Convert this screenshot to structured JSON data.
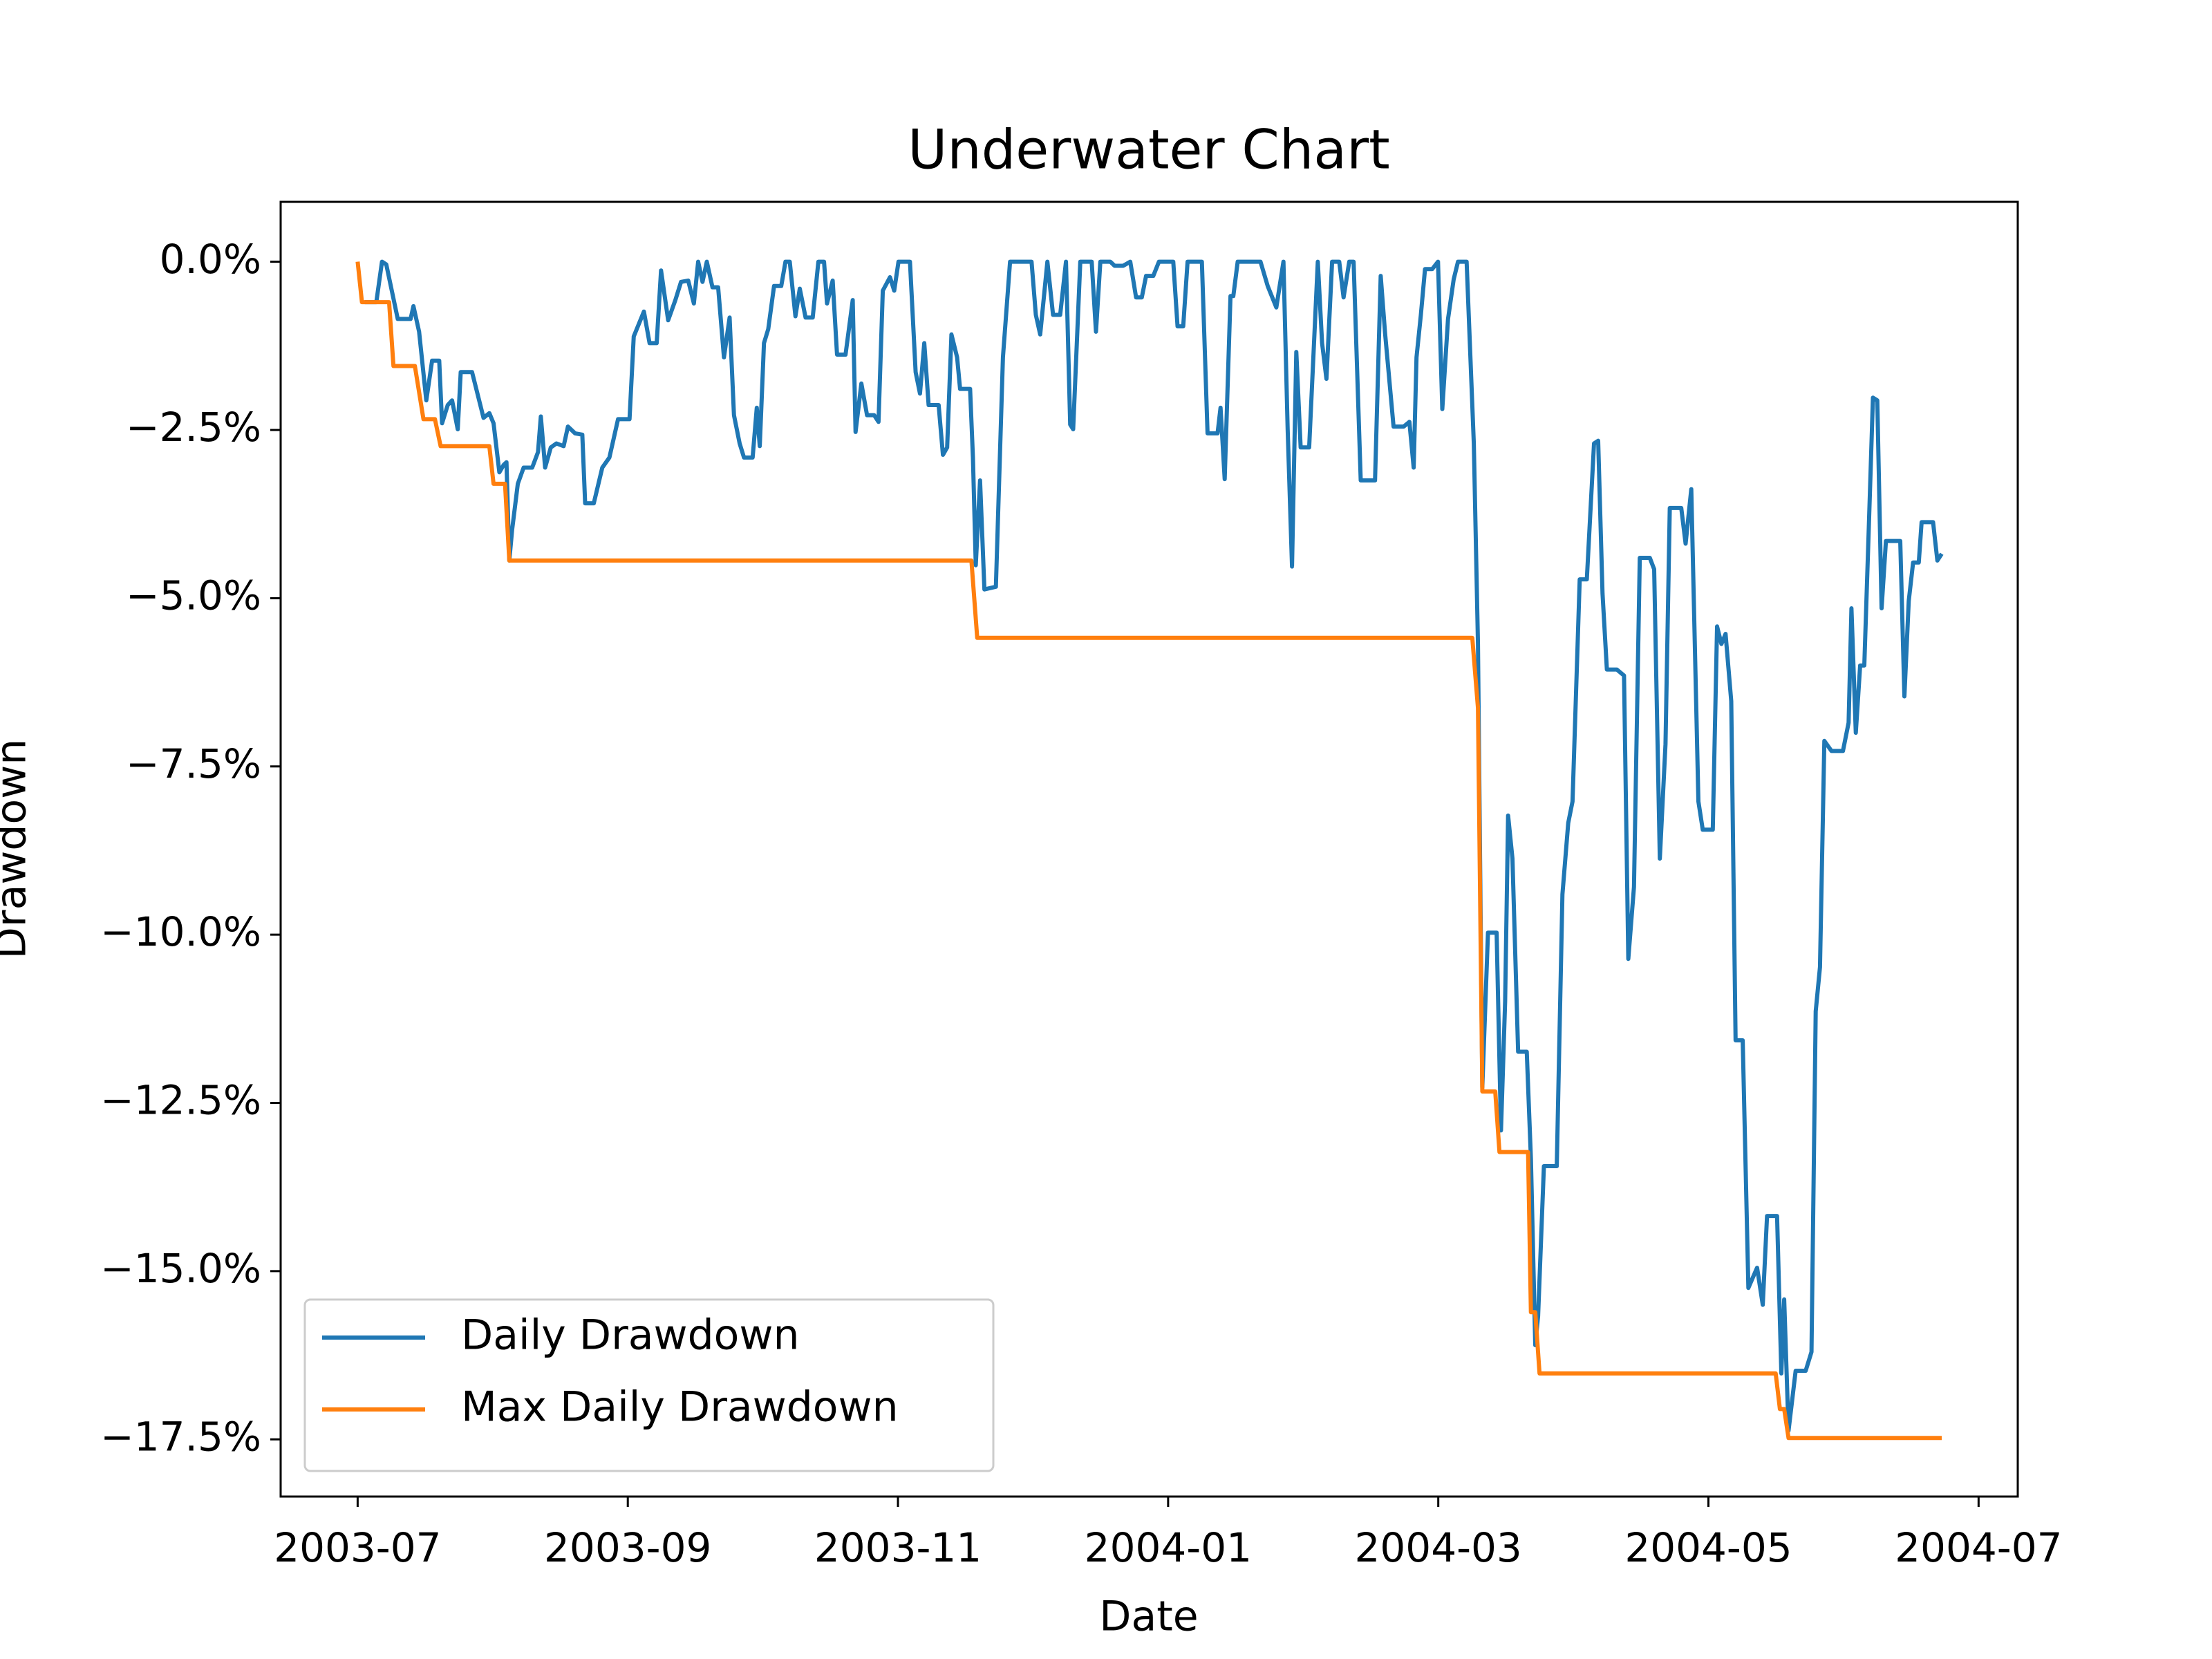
{
  "chart_data": {
    "type": "line",
    "title": "Underwater Chart",
    "xlabel": "Date",
    "ylabel": "Drawdown",
    "xlim": [
      -0.57,
      12.29
    ],
    "xticks": [
      {
        "value": 0,
        "label": "2003-07"
      },
      {
        "value": 2,
        "label": "2003-09"
      },
      {
        "value": 4,
        "label": "2003-11"
      },
      {
        "value": 6,
        "label": "2004-01"
      },
      {
        "value": 8,
        "label": "2004-03"
      },
      {
        "value": 10,
        "label": "2004-05"
      },
      {
        "value": 12,
        "label": "2004-07"
      }
    ],
    "ylim": [
      -18.35,
      0.89
    ],
    "yticks": [
      {
        "value": 0,
        "label": "0.0%"
      },
      {
        "value": -2.5,
        "label": "−2.5%"
      },
      {
        "value": -5,
        "label": "−5.0%"
      },
      {
        "value": -7.5,
        "label": "−7.5%"
      },
      {
        "value": -10,
        "label": "−10.0%"
      },
      {
        "value": -12.5,
        "label": "−12.5%"
      },
      {
        "value": -15,
        "label": "−15.0%"
      },
      {
        "value": -17.5,
        "label": "−17.5%"
      }
    ],
    "legend": "lower left",
    "series": [
      {
        "name": "Daily Drawdown",
        "color": "#1f77b4",
        "x": [
          0.053,
          0.138,
          0.18,
          0.212,
          0.297,
          0.392,
          0.413,
          0.455,
          0.508,
          0.551,
          0.604,
          0.625,
          0.667,
          0.699,
          0.741,
          0.763,
          0.847,
          0.932,
          0.975,
          1.006,
          1.049,
          1.081,
          1.102,
          1.123,
          1.144,
          1.186,
          1.229,
          1.292,
          1.335,
          1.356,
          1.388,
          1.43,
          1.472,
          1.525,
          1.557,
          1.61,
          1.663,
          1.684,
          1.748,
          1.811,
          1.864,
          1.928,
          2.013,
          2.044,
          2.119,
          2.161,
          2.214,
          2.246,
          2.299,
          2.352,
          2.394,
          2.447,
          2.489,
          2.521,
          2.553,
          2.585,
          2.627,
          2.669,
          2.712,
          2.754,
          2.786,
          2.828,
          2.86,
          2.924,
          2.955,
          2.977,
          3.008,
          3.04,
          3.083,
          3.136,
          3.167,
          3.199,
          3.241,
          3.273,
          3.316,
          3.369,
          3.411,
          3.453,
          3.475,
          3.517,
          3.549,
          3.612,
          3.665,
          3.686,
          3.729,
          3.771,
          3.824,
          3.856,
          3.888,
          3.941,
          3.972,
          4.004,
          4.089,
          4.131,
          4.163,
          4.195,
          4.227,
          4.301,
          4.333,
          4.364,
          4.396,
          4.438,
          4.46,
          4.534,
          4.555,
          4.576,
          4.608,
          4.64,
          4.725,
          4.777,
          4.83,
          4.989,
          5.021,
          5.053,
          5.106,
          5.148,
          5.201,
          5.244,
          5.275,
          5.297,
          5.35,
          5.434,
          5.466,
          5.498,
          5.572,
          5.604,
          5.667,
          5.72,
          5.763,
          5.805,
          5.837,
          5.89,
          5.932,
          6.038,
          6.07,
          6.112,
          6.144,
          6.25,
          6.292,
          6.366,
          6.388,
          6.419,
          6.462,
          6.483,
          6.515,
          6.684,
          6.737,
          6.801,
          6.854,
          6.885,
          6.917,
          6.949,
          6.981,
          7.044,
          7.108,
          7.14,
          7.172,
          7.214,
          7.267,
          7.299,
          7.341,
          7.373,
          7.426,
          7.532,
          7.574,
          7.606,
          7.669,
          7.744,
          7.786,
          7.818,
          7.839,
          7.871,
          7.902,
          7.955,
          7.998,
          8.03,
          8.072,
          8.114,
          8.146,
          8.21,
          8.263,
          8.294,
          8.326,
          8.368,
          8.432,
          8.464,
          8.495,
          8.517,
          8.549,
          8.591,
          8.655,
          8.686,
          8.718,
          8.739,
          8.782,
          8.877,
          8.919,
          8.962,
          8.994,
          9.047,
          9.1,
          9.153,
          9.184,
          9.216,
          9.248,
          9.322,
          9.375,
          9.407,
          9.449,
          9.492,
          9.566,
          9.598,
          9.64,
          9.682,
          9.714,
          9.799,
          9.831,
          9.873,
          9.926,
          9.958,
          10.032,
          10.064,
          10.096,
          10.127,
          10.169,
          10.201,
          10.254,
          10.296,
          10.36,
          10.402,
          10.434,
          10.508,
          10.54,
          10.561,
          10.593,
          10.646,
          10.72,
          10.763,
          10.794,
          10.826,
          10.858,
          10.911,
          10.996,
          11.038,
          11.059,
          11.091,
          11.123,
          11.154,
          11.186,
          11.218,
          11.25,
          11.282,
          11.314,
          11.42,
          11.451,
          11.483,
          11.515,
          11.557,
          11.578,
          11.663,
          11.695,
          11.727
        ],
        "values": [
          -0.6,
          -0.6,
          0,
          -0.04,
          -0.85,
          -0.85,
          -0.66,
          -1.04,
          -2.06,
          -1.47,
          -1.47,
          -2.4,
          -2.13,
          -2.06,
          -2.49,
          -1.64,
          -1.64,
          -2.32,
          -2.25,
          -2.4,
          -3.13,
          -3.02,
          -2.98,
          -4.44,
          -3.98,
          -3.3,
          -3.06,
          -3.06,
          -2.83,
          -2.3,
          -3.06,
          -2.76,
          -2.7,
          -2.74,
          -2.45,
          -2.55,
          -2.57,
          -3.59,
          -3.59,
          -3.06,
          -2.91,
          -2.34,
          -2.34,
          -1.11,
          -0.74,
          -1.21,
          -1.21,
          -0.13,
          -0.87,
          -0.57,
          -0.3,
          -0.28,
          -0.62,
          0,
          -0.3,
          0,
          -0.38,
          -0.38,
          -1.42,
          -0.83,
          -2.28,
          -2.7,
          -2.91,
          -2.91,
          -2.17,
          -2.74,
          -1.21,
          -1,
          -0.36,
          -0.36,
          0,
          0,
          -0.81,
          -0.4,
          -0.83,
          -0.83,
          0,
          0,
          -0.62,
          -0.28,
          -1.38,
          -1.38,
          -0.57,
          -2.53,
          -1.81,
          -2.28,
          -2.28,
          -2.38,
          -0.43,
          -0.23,
          -0.43,
          0,
          0,
          -1.64,
          -1.96,
          -1.21,
          -2.13,
          -2.13,
          -2.87,
          -2.76,
          -1.08,
          -1.42,
          -1.89,
          -1.89,
          -2.91,
          -4.51,
          -3.25,
          -4.87,
          -4.83,
          -1.42,
          0,
          0,
          -0.79,
          -1.08,
          0,
          -0.79,
          -0.79,
          0,
          -2.42,
          -2.49,
          0,
          0,
          -1.04,
          0,
          0,
          -0.06,
          -0.06,
          0,
          -0.53,
          -0.53,
          -0.21,
          -0.21,
          0,
          0,
          -0.96,
          -0.96,
          0,
          0,
          -2.55,
          -2.55,
          -2.17,
          -3.23,
          -0.51,
          -0.51,
          0,
          0,
          -0.36,
          -0.68,
          0,
          -2.49,
          -4.53,
          -1.34,
          -2.76,
          -2.76,
          0,
          -1.21,
          -1.74,
          0,
          0,
          -0.53,
          0,
          0,
          -3.25,
          -3.25,
          -0.21,
          -1.06,
          -2.45,
          -2.45,
          -2.38,
          -3.06,
          -1.42,
          -0.79,
          -0.11,
          -0.11,
          0,
          -2.19,
          -0.85,
          -0.26,
          0,
          0,
          -2.7,
          -5.68,
          -12.27,
          -9.97,
          -9.97,
          -12.91,
          -10.99,
          -8.23,
          -8.87,
          -11.74,
          -11.74,
          -13.33,
          -16.1,
          -15.67,
          -13.44,
          -13.44,
          -9.4,
          -8.34,
          -8.02,
          -4.72,
          -4.72,
          -2.7,
          -2.66,
          -4.93,
          -6.06,
          -6.06,
          -6.15,
          -10.36,
          -9.29,
          -4.4,
          -4.4,
          -4.57,
          -8.87,
          -7.17,
          -3.66,
          -3.66,
          -4.19,
          -3.38,
          -8.02,
          -8.44,
          -8.44,
          -5.42,
          -5.68,
          -5.53,
          -6.53,
          -11.57,
          -11.57,
          -15.25,
          -14.95,
          -15.5,
          -14.18,
          -14.18,
          -16.52,
          -15.42,
          -17.37,
          -16.48,
          -16.48,
          -16.2,
          -11.14,
          -10.48,
          -7.12,
          -7.27,
          -7.27,
          -6.85,
          -5.15,
          -7,
          -6,
          -6,
          -4.02,
          -2.02,
          -2.06,
          -5.15,
          -4.15,
          -4.15,
          -6.46,
          -5.04,
          -4.47,
          -4.47,
          -3.87,
          -3.87,
          -4.44,
          -4.34
        ]
      },
      {
        "name": "Max Daily Drawdown",
        "color": "#ff7f0e",
        "x": [
          0,
          0.032,
          0.233,
          0.265,
          0.424,
          0.487,
          0.572,
          0.614,
          0.975,
          1.006,
          1.091,
          1.123,
          4.544,
          4.587,
          8.252,
          8.294,
          8.326,
          8.422,
          8.453,
          8.665,
          8.686,
          8.718,
          8.75,
          10.498,
          10.529,
          10.561,
          10.593,
          11.727
        ],
        "values": [
          0,
          -0.6,
          -0.6,
          -1.55,
          -1.55,
          -2.34,
          -2.34,
          -2.74,
          -2.74,
          -3.3,
          -3.3,
          -4.44,
          -4.44,
          -5.59,
          -5.59,
          -6.63,
          -12.33,
          -12.33,
          -13.23,
          -13.23,
          -15.61,
          -15.61,
          -16.52,
          -16.52,
          -17.05,
          -17.05,
          -17.48,
          -17.48
        ]
      }
    ]
  }
}
